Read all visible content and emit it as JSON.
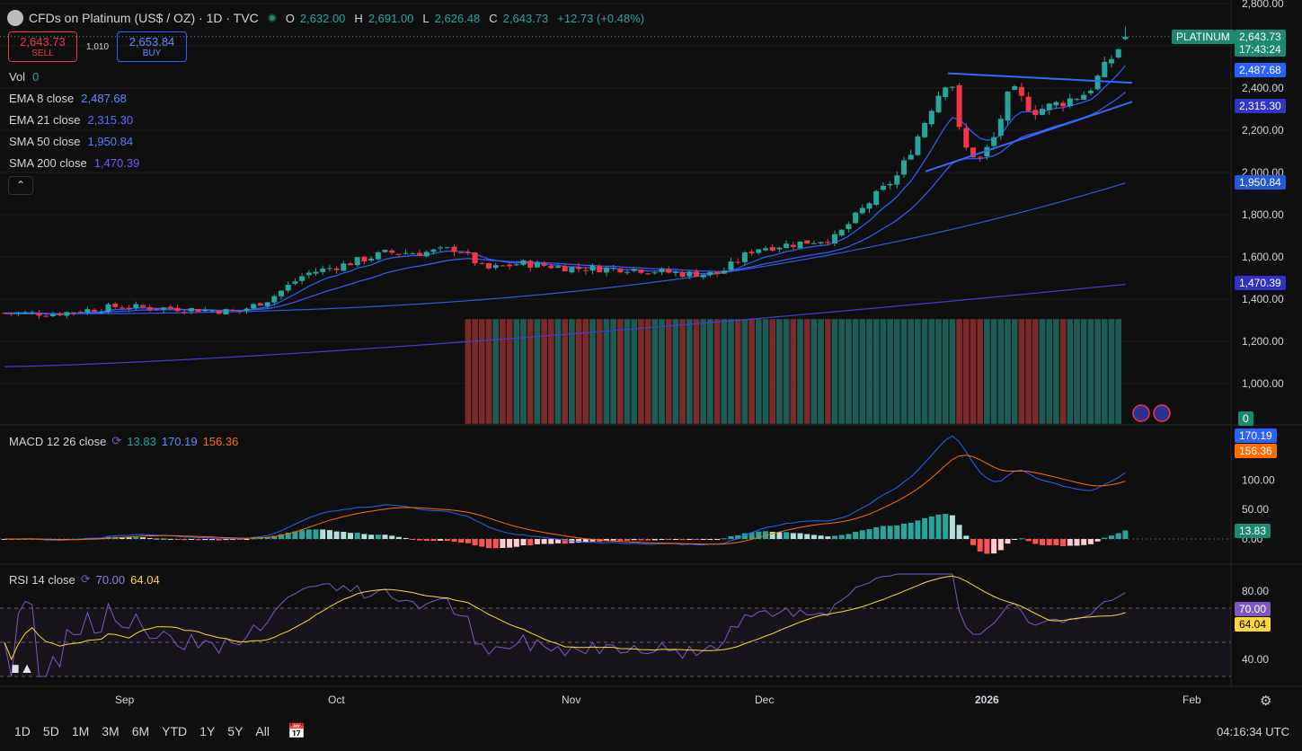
{
  "header": {
    "title": "CFDs on Platinum (US$ / OZ) · 1D · TVC",
    "o_label": "O",
    "o": "2,632.00",
    "h_label": "H",
    "h": "2,691.00",
    "l_label": "L",
    "l": "2,626.48",
    "c_label": "C",
    "c": "2,643.73",
    "change": "+12.73 (+0.48%)"
  },
  "trade": {
    "sell_price": "2,643.73",
    "sell_label": "SELL",
    "spread": "1,010",
    "buy_price": "2,653.84",
    "buy_label": "BUY"
  },
  "legend": {
    "vol": {
      "label": "Vol",
      "value": "0"
    },
    "ema8": {
      "label": "EMA 8 close",
      "value": "2,487.68"
    },
    "ema21": {
      "label": "EMA 21 close",
      "value": "2,315.30"
    },
    "sma50": {
      "label": "SMA 50 close",
      "value": "1,950.84"
    },
    "sma200": {
      "label": "SMA 200 close",
      "value": "1,470.39"
    }
  },
  "price_tags": {
    "symbol": "PLATINUM",
    "price": "2,643.73",
    "countdown": "17:43:24",
    "ema8": "2,487.68",
    "ema21": "2,315.30",
    "sma50": "1,950.84",
    "sma200": "1,470.39",
    "vol": "0"
  },
  "macd_legend": {
    "label": "MACD 12 26 close",
    "hist": "13.83",
    "macd": "170.19",
    "signal": "156.36"
  },
  "rsi_legend": {
    "label": "RSI 14 close",
    "rsi": "70.00",
    "ma": "64.04"
  },
  "x_labels": [
    "Sep",
    "Oct",
    "Nov",
    "Dec",
    "2026",
    "Feb"
  ],
  "timeframes": [
    "1D",
    "5D",
    "1M",
    "3M",
    "6M",
    "YTD",
    "1Y",
    "5Y",
    "All"
  ],
  "clock": "04:16:34 UTC",
  "colors": {
    "up": "#26a69a",
    "down": "#f23645",
    "ema8": "#2962ff",
    "ema21": "#3d5afe",
    "sma50": "#2f5bd8",
    "sma200": "#3f3fd6",
    "macd": "#2962ff",
    "signal": "#ff6d00",
    "rsi": "#7e57c2",
    "rsi_ma": "#fdd835"
  },
  "chart_data": [
    {
      "type": "candlestick",
      "title": "CFDs on Platinum (US$ / OZ) · 1D · TVC",
      "y_ticks": [
        1000,
        1200,
        1400,
        1600,
        1800,
        2000,
        2200,
        2400,
        2600,
        2800
      ],
      "anchors": [
        {
          "date": "Sep",
          "close": 1340
        },
        {
          "date": "Oct",
          "close": 1580
        },
        {
          "date": "mid-Oct",
          "close": 1590
        },
        {
          "date": "Nov",
          "close": 1565
        },
        {
          "date": "late-Nov",
          "close": 1530
        },
        {
          "date": "Dec",
          "close": 1640
        },
        {
          "date": "mid-Dec",
          "close": 2000
        },
        {
          "date": "late-Dec",
          "close": 2300
        },
        {
          "date": "2026",
          "close": 2150
        },
        {
          "date": "mid-Jan",
          "close": 2420
        },
        {
          "date": "latest",
          "close": 2643.73
        }
      ],
      "last": {
        "open": 2632.0,
        "high": 2691.0,
        "low": 2626.48,
        "close": 2643.73
      },
      "trendlines": [
        {
          "from": [
            1055,
            2470
          ],
          "to": [
            1260,
            2425
          ]
        },
        {
          "from": [
            1030,
            2005
          ],
          "to": [
            1260,
            2335
          ]
        }
      ]
    },
    {
      "type": "line",
      "title": "MACD 12 26 close",
      "y_ticks": [
        0,
        50,
        100
      ],
      "macd_last": 170.19,
      "signal_last": 156.36,
      "hist_last": 13.83
    },
    {
      "type": "line",
      "title": "RSI 14 close",
      "y_ticks": [
        40,
        80
      ],
      "levels": [
        70,
        50,
        30
      ],
      "rsi_last": 70.0,
      "ma_last": 64.04
    }
  ]
}
